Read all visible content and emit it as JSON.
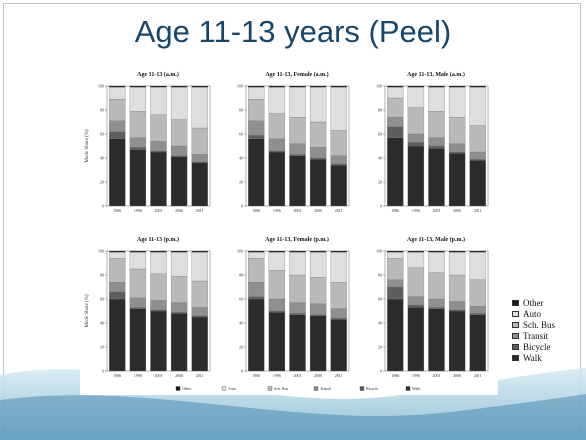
{
  "slide": {
    "title": "Age 11-13 years (Peel)"
  },
  "colors": {
    "Walk": "#2b2b2b",
    "Bicycle": "#5d5d5d",
    "Transit": "#8f8f8f",
    "Sch. Bus": "#b9b9b9",
    "Auto": "#dedede",
    "Other": "#1a1a1a"
  },
  "chart_data": [
    {
      "type": "bar",
      "stacked": true,
      "title": "Age 11-13 (a.m.)",
      "ylabel": "Mode Share (%)",
      "ylim": [
        0,
        100
      ],
      "yticks": [
        0,
        20,
        40,
        60,
        80,
        100
      ],
      "categories": [
        "1986",
        "1996",
        "2001",
        "2006",
        "2011"
      ],
      "series": [
        {
          "name": "Walk",
          "values": [
            56,
            47,
            45,
            41,
            36
          ]
        },
        {
          "name": "Bicycle",
          "values": [
            6,
            2,
            1,
            1,
            1
          ]
        },
        {
          "name": "Transit",
          "values": [
            9,
            8,
            8,
            8,
            6
          ]
        },
        {
          "name": "Sch. Bus",
          "values": [
            18,
            22,
            22,
            22,
            22
          ]
        },
        {
          "name": "Auto",
          "values": [
            10,
            20,
            23,
            27,
            34
          ]
        },
        {
          "name": "Other",
          "values": [
            1,
            1,
            1,
            1,
            1
          ]
        }
      ]
    },
    {
      "type": "bar",
      "stacked": true,
      "title": "Age 11-13, Female (a.m.)",
      "ylabel": "",
      "ylim": [
        0,
        100
      ],
      "yticks": [
        0,
        20,
        40,
        60,
        80,
        100
      ],
      "categories": [
        "1986",
        "1996",
        "2001",
        "2006",
        "2011"
      ],
      "series": [
        {
          "name": "Walk",
          "values": [
            56,
            45,
            42,
            39,
            34
          ]
        },
        {
          "name": "Bicycle",
          "values": [
            3,
            1,
            1,
            1,
            1
          ]
        },
        {
          "name": "Transit",
          "values": [
            12,
            10,
            9,
            9,
            7
          ]
        },
        {
          "name": "Sch. Bus",
          "values": [
            18,
            21,
            22,
            21,
            21
          ]
        },
        {
          "name": "Auto",
          "values": [
            10,
            22,
            25,
            29,
            36
          ]
        },
        {
          "name": "Other",
          "values": [
            1,
            1,
            1,
            1,
            1
          ]
        }
      ]
    },
    {
      "type": "bar",
      "stacked": true,
      "title": "Age 11-13, Male (a.m.)",
      "ylabel": "",
      "ylim": [
        0,
        100
      ],
      "yticks": [
        0,
        20,
        40,
        60,
        80,
        100
      ],
      "categories": [
        "1986",
        "1996",
        "2001",
        "2006",
        "2011"
      ],
      "series": [
        {
          "name": "Walk",
          "values": [
            57,
            50,
            48,
            44,
            38
          ]
        },
        {
          "name": "Bicycle",
          "values": [
            9,
            3,
            2,
            1,
            1
          ]
        },
        {
          "name": "Transit",
          "values": [
            8,
            7,
            7,
            7,
            6
          ]
        },
        {
          "name": "Sch. Bus",
          "values": [
            16,
            22,
            22,
            22,
            22
          ]
        },
        {
          "name": "Auto",
          "values": [
            9,
            17,
            20,
            25,
            32
          ]
        },
        {
          "name": "Other",
          "values": [
            1,
            1,
            1,
            1,
            1
          ]
        }
      ]
    },
    {
      "type": "bar",
      "stacked": true,
      "title": "Age 11-13 (p.m.)",
      "ylabel": "Mode Share (%)",
      "ylim": [
        0,
        100
      ],
      "yticks": [
        0,
        20,
        40,
        60,
        80,
        100
      ],
      "categories": [
        "1986",
        "1996",
        "2001",
        "2006",
        "2011"
      ],
      "series": [
        {
          "name": "Walk",
          "values": [
            60,
            52,
            50,
            48,
            45
          ]
        },
        {
          "name": "Bicycle",
          "values": [
            6,
            1,
            1,
            1,
            1
          ]
        },
        {
          "name": "Transit",
          "values": [
            8,
            8,
            8,
            8,
            7
          ]
        },
        {
          "name": "Sch. Bus",
          "values": [
            20,
            24,
            22,
            22,
            22
          ]
        },
        {
          "name": "Auto",
          "values": [
            5,
            14,
            18,
            20,
            24
          ]
        },
        {
          "name": "Other",
          "values": [
            1,
            1,
            1,
            1,
            1
          ]
        }
      ]
    },
    {
      "type": "bar",
      "stacked": true,
      "title": "Age 11-13, Female (p.m.)",
      "ylabel": "",
      "ylim": [
        0,
        100
      ],
      "yticks": [
        0,
        20,
        40,
        60,
        80,
        100
      ],
      "categories": [
        "1986",
        "1996",
        "2001",
        "2006",
        "2011"
      ],
      "series": [
        {
          "name": "Walk",
          "values": [
            60,
            49,
            47,
            46,
            43
          ]
        },
        {
          "name": "Bicycle",
          "values": [
            2,
            1,
            1,
            1,
            1
          ]
        },
        {
          "name": "Transit",
          "values": [
            12,
            10,
            9,
            9,
            8
          ]
        },
        {
          "name": "Sch. Bus",
          "values": [
            20,
            24,
            23,
            22,
            22
          ]
        },
        {
          "name": "Auto",
          "values": [
            5,
            15,
            19,
            21,
            25
          ]
        },
        {
          "name": "Other",
          "values": [
            1,
            1,
            1,
            1,
            1
          ]
        }
      ]
    },
    {
      "type": "bar",
      "stacked": true,
      "title": "Age 11-13, Male (p.m.)",
      "ylabel": "",
      "ylim": [
        0,
        100
      ],
      "yticks": [
        0,
        20,
        40,
        60,
        80,
        100
      ],
      "categories": [
        "1986",
        "1996",
        "2001",
        "2006",
        "2011"
      ],
      "series": [
        {
          "name": "Walk",
          "values": [
            60,
            53,
            52,
            50,
            47
          ]
        },
        {
          "name": "Bicycle",
          "values": [
            10,
            2,
            1,
            1,
            1
          ]
        },
        {
          "name": "Transit",
          "values": [
            6,
            7,
            7,
            7,
            6
          ]
        },
        {
          "name": "Sch. Bus",
          "values": [
            18,
            24,
            22,
            22,
            22
          ]
        },
        {
          "name": "Auto",
          "values": [
            5,
            13,
            17,
            19,
            23
          ]
        },
        {
          "name": "Other",
          "values": [
            1,
            1,
            1,
            1,
            1
          ]
        }
      ]
    }
  ],
  "bottom_legend": [
    "Other",
    "Auto",
    "Sch. Bus",
    "Transit",
    "Bicycle",
    "Walk"
  ],
  "side_legend": [
    "Other",
    "Auto",
    "Sch. Bus",
    "Transit",
    "Bicycle",
    "Walk"
  ]
}
